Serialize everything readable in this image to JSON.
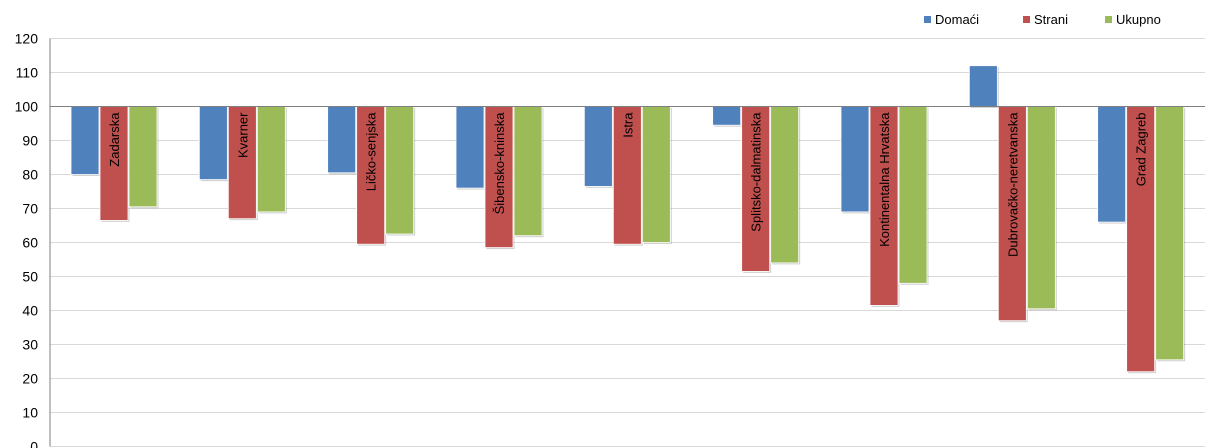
{
  "chart_data": {
    "type": "bar",
    "baseline": 100,
    "categories": [
      "Zadarska",
      "Kvarner",
      "Ličko-senjska",
      "Šibensko-kninska",
      "Istra",
      "Splitsko-dalmatinska",
      "Kontinentalna Hrvatska",
      "Dubrovačko-neretvanska",
      "Grad Zagreb"
    ],
    "series": [
      {
        "name": "Domaći",
        "color": "#4f81bd",
        "values": [
          80,
          78.5,
          80.5,
          76,
          76.5,
          94.5,
          69,
          112,
          66
        ]
      },
      {
        "name": "Strani",
        "color": "#c0504d",
        "values": [
          66.5,
          67,
          59.5,
          58.5,
          59.5,
          51.5,
          41.5,
          37,
          22
        ]
      },
      {
        "name": "Ukupno",
        "color": "#9bbb59",
        "values": [
          70.5,
          69,
          62.5,
          62,
          60,
          54,
          48,
          40.5,
          25.5
        ]
      }
    ],
    "ylim": [
      0,
      120
    ],
    "yticks": [
      0,
      10,
      20,
      30,
      40,
      50,
      60,
      70,
      80,
      90,
      100,
      110,
      120
    ],
    "grid": true,
    "legend_position": "top-right"
  }
}
